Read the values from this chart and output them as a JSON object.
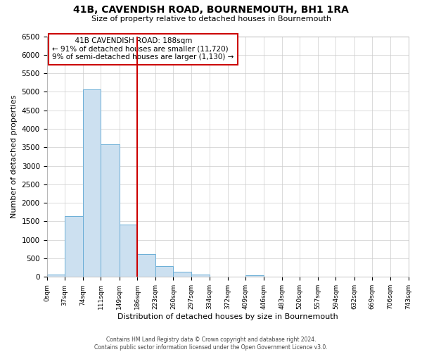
{
  "title": "41B, CAVENDISH ROAD, BOURNEMOUTH, BH1 1RA",
  "subtitle": "Size of property relative to detached houses in Bournemouth",
  "xlabel": "Distribution of detached houses by size in Bournemouth",
  "ylabel": "Number of detached properties",
  "bar_edges": [
    0,
    37,
    74,
    111,
    149,
    186,
    223,
    260,
    297,
    334,
    372,
    409,
    446,
    483,
    520,
    557,
    594,
    632,
    669,
    706,
    743
  ],
  "bar_heights": [
    55,
    1650,
    5060,
    3590,
    1420,
    610,
    295,
    145,
    60,
    0,
    0,
    40,
    0,
    0,
    0,
    0,
    0,
    0,
    0,
    0
  ],
  "bar_color": "#cce0f0",
  "bar_edgecolor": "#6baed6",
  "vline_x": 186,
  "vline_color": "#cc0000",
  "ylim": [
    0,
    6500
  ],
  "yticks": [
    0,
    500,
    1000,
    1500,
    2000,
    2500,
    3000,
    3500,
    4000,
    4500,
    5000,
    5500,
    6000,
    6500
  ],
  "xtick_labels": [
    "0sqm",
    "37sqm",
    "74sqm",
    "111sqm",
    "149sqm",
    "186sqm",
    "223sqm",
    "260sqm",
    "297sqm",
    "334sqm",
    "372sqm",
    "409sqm",
    "446sqm",
    "483sqm",
    "520sqm",
    "557sqm",
    "594sqm",
    "632sqm",
    "669sqm",
    "706sqm",
    "743sqm"
  ],
  "annotation_title": "41B CAVENDISH ROAD: 188sqm",
  "annotation_line1": "← 91% of detached houses are smaller (11,720)",
  "annotation_line2": "9% of semi-detached houses are larger (1,130) →",
  "annotation_box_color": "#ffffff",
  "annotation_box_edgecolor": "#cc0000",
  "footer1": "Contains HM Land Registry data © Crown copyright and database right 2024.",
  "footer2": "Contains public sector information licensed under the Open Government Licence v3.0.",
  "background_color": "#ffffff",
  "grid_color": "#cccccc"
}
